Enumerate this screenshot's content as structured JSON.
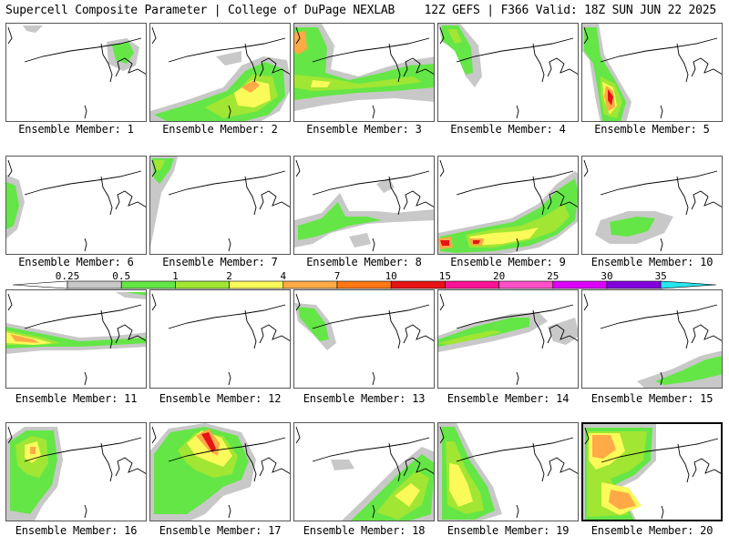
{
  "header": {
    "left": "Supercell Composite Parameter | College of DuPage NEXLAB",
    "right": "12Z GEFS | F366 Valid: 18Z SUN JUN 22 2025"
  },
  "caption_prefix": "Ensemble Member: ",
  "members": [
    "1",
    "2",
    "3",
    "4",
    "5",
    "6",
    "7",
    "8",
    "9",
    "10",
    "11",
    "12",
    "13",
    "14",
    "15",
    "16",
    "17",
    "18",
    "19",
    "20"
  ],
  "colorbar": {
    "labels": [
      "0.25",
      "0.5",
      "1",
      "2",
      "4",
      "7",
      "10",
      "15",
      "20",
      "25",
      "30",
      "35"
    ],
    "colors": [
      "#c8c8c8",
      "#64e646",
      "#a0e632",
      "#fafa5a",
      "#ffaa46",
      "#ff7814",
      "#e61414",
      "#ff1496",
      "#ff50c8",
      "#dc00ff",
      "#8200dc",
      "#b46ee6",
      "#28e6f0"
    ]
  },
  "legend_colors": {
    "gray": "#c8c8c8",
    "green": "#64e646",
    "light_green": "#a0e632",
    "yellow": "#fafa5a",
    "orange": "#ffaa46",
    "dark_orange": "#ff7814",
    "red": "#e61414"
  }
}
